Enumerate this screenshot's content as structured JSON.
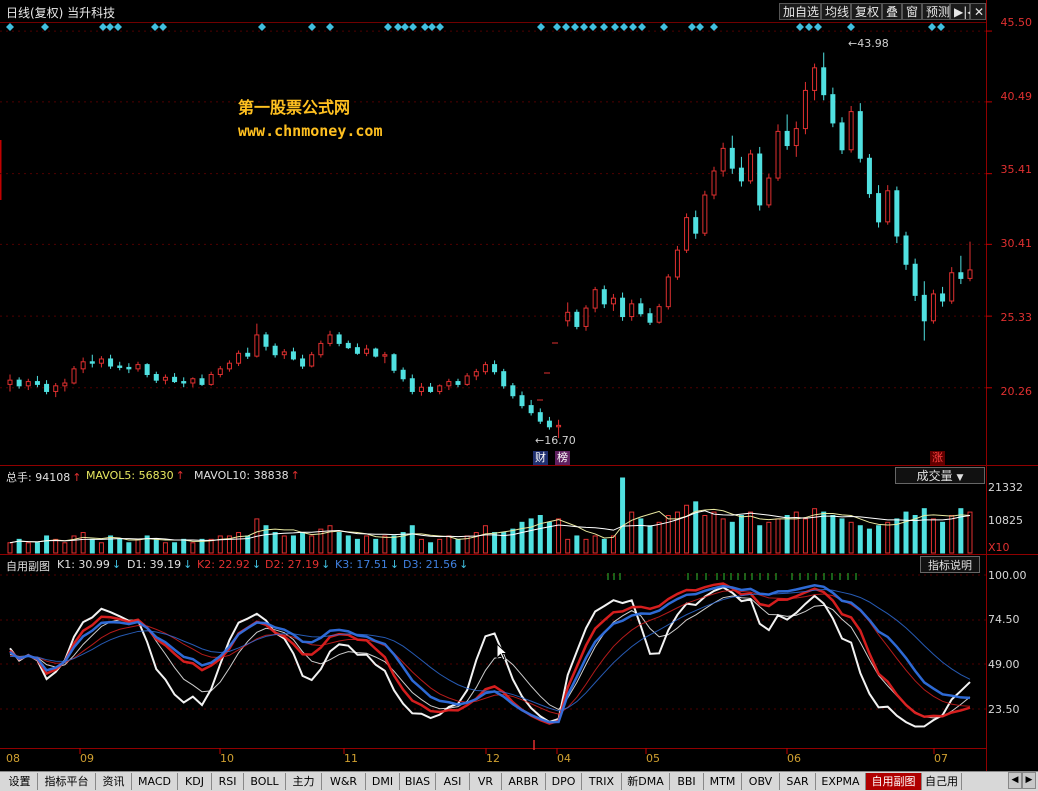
{
  "header": {
    "title": "日线(复权) 当升科技",
    "buttons": [
      "加自选",
      "均线",
      "复权",
      "叠",
      "窗",
      "预测",
      "▶|◀",
      "✕"
    ]
  },
  "watermark": {
    "line1": "第一股票公式网",
    "line2": "www.chnmoney.com"
  },
  "price_axis": {
    "labels": [
      "45.50",
      "40.49",
      "35.41",
      "30.41",
      "25.33",
      "20.26"
    ]
  },
  "price_markers": {
    "high": "43.98",
    "low": "16.70",
    "badges": [
      "财",
      "榜",
      "涨"
    ]
  },
  "volume_panel": {
    "legend": [
      {
        "text": "总手: 94108",
        "arrow": "↑",
        "color": "#e0e0e0"
      },
      {
        "text": "MAVOL5: 56830",
        "arrow": "↑",
        "color": "#e8e860"
      },
      {
        "text": "MAVOL10: 38838",
        "arrow": "↑",
        "color": "#e0e0e0"
      }
    ],
    "dropdown": "成交量",
    "axis": [
      "21332",
      "10825",
      "X10"
    ]
  },
  "indicator_panel": {
    "name": "自用副图",
    "legend": [
      {
        "text": "K1: 30.99",
        "arrow": "↓",
        "color": "#e0e0e0"
      },
      {
        "text": "D1: 39.19",
        "arrow": "↓",
        "color": "#e0e0e0"
      },
      {
        "text": "K2: 22.92",
        "arrow": "↓",
        "color": "#e03030"
      },
      {
        "text": "D2: 27.19",
        "arrow": "↓",
        "color": "#e03030"
      },
      {
        "text": "K3: 17.51",
        "arrow": "↓",
        "color": "#4080e0"
      },
      {
        "text": "D3: 21.56",
        "arrow": "↓",
        "color": "#4080e0"
      }
    ],
    "help": "指标说明",
    "axis": [
      "100.00",
      "74.50",
      "49.00",
      "23.50"
    ]
  },
  "months": [
    "08",
    "09",
    "10",
    "11",
    "12",
    "04",
    "05",
    "06",
    "07"
  ],
  "tabs": [
    "设置",
    "指标平台",
    "资讯",
    "MACD",
    "KDJ",
    "RSI",
    "BOLL",
    "主力",
    "W&R",
    "DMI",
    "BIAS",
    "ASI",
    "VR",
    "ARBR",
    "DPO",
    "TRIX",
    "新DMA",
    "BBI",
    "MTM",
    "OBV",
    "SAR",
    "EXPMA",
    "自用副图",
    "自己用"
  ],
  "active_tab": "自用副图",
  "colors": {
    "up": "#e03030",
    "down": "#50e0e0",
    "k_line": "#ffffff",
    "red_line": "#e02020",
    "blue_line": "#3070e0"
  },
  "chart_data": {
    "type": "candlestick",
    "price_axis_labels": [
      45.5,
      40.49,
      35.41,
      30.41,
      25.33,
      20.26
    ],
    "ylim": [
      16.0,
      46.0
    ],
    "high_marker": 43.98,
    "low_marker": 16.7,
    "ohlc": [
      [
        20.5,
        21.2,
        20.0,
        20.8
      ],
      [
        20.8,
        21.0,
        20.2,
        20.4
      ],
      [
        20.4,
        20.9,
        20.1,
        20.7
      ],
      [
        20.7,
        21.1,
        20.3,
        20.5
      ],
      [
        20.5,
        20.8,
        19.8,
        20.0
      ],
      [
        20.0,
        20.6,
        19.6,
        20.4
      ],
      [
        20.4,
        20.9,
        20.0,
        20.6
      ],
      [
        20.6,
        21.8,
        20.5,
        21.6
      ],
      [
        21.6,
        22.4,
        21.3,
        22.1
      ],
      [
        22.1,
        22.6,
        21.7,
        22.0
      ],
      [
        22.0,
        22.5,
        21.7,
        22.3
      ],
      [
        22.3,
        22.6,
        21.6,
        21.8
      ],
      [
        21.8,
        22.1,
        21.5,
        21.7
      ],
      [
        21.7,
        22.0,
        21.3,
        21.6
      ],
      [
        21.6,
        22.1,
        21.4,
        21.9
      ],
      [
        21.9,
        22.0,
        21.0,
        21.2
      ],
      [
        21.2,
        21.4,
        20.6,
        20.8
      ],
      [
        20.8,
        21.2,
        20.5,
        21.0
      ],
      [
        21.0,
        21.3,
        20.6,
        20.7
      ],
      [
        20.7,
        21.0,
        20.3,
        20.6
      ],
      [
        20.6,
        21.0,
        20.3,
        20.9
      ],
      [
        20.9,
        21.2,
        20.4,
        20.5
      ],
      [
        20.5,
        21.4,
        20.4,
        21.2
      ],
      [
        21.2,
        21.8,
        21.0,
        21.6
      ],
      [
        21.6,
        22.2,
        21.4,
        22.0
      ],
      [
        22.0,
        22.9,
        21.8,
        22.7
      ],
      [
        22.7,
        23.1,
        22.3,
        22.5
      ],
      [
        22.5,
        24.8,
        22.4,
        24.0
      ],
      [
        24.0,
        24.2,
        22.9,
        23.2
      ],
      [
        23.2,
        23.4,
        22.4,
        22.6
      ],
      [
        22.6,
        23.0,
        22.3,
        22.8
      ],
      [
        22.8,
        23.1,
        22.2,
        22.3
      ],
      [
        22.3,
        22.6,
        21.6,
        21.8
      ],
      [
        21.8,
        22.8,
        21.7,
        22.6
      ],
      [
        22.6,
        23.6,
        22.4,
        23.4
      ],
      [
        23.4,
        24.3,
        23.2,
        24.0
      ],
      [
        24.0,
        24.2,
        23.2,
        23.4
      ],
      [
        23.4,
        23.6,
        23.0,
        23.1
      ],
      [
        23.1,
        23.4,
        22.6,
        22.7
      ],
      [
        22.7,
        23.3,
        22.5,
        23.0
      ],
      [
        23.0,
        23.1,
        22.4,
        22.5
      ],
      [
        22.5,
        22.8,
        22.0,
        22.6
      ],
      [
        22.6,
        22.7,
        21.3,
        21.5
      ],
      [
        21.5,
        21.7,
        20.7,
        20.9
      ],
      [
        20.9,
        21.2,
        19.8,
        20.0
      ],
      [
        20.0,
        20.6,
        19.7,
        20.3
      ],
      [
        20.3,
        20.6,
        19.9,
        20.0
      ],
      [
        20.0,
        20.5,
        19.8,
        20.4
      ],
      [
        20.4,
        20.9,
        20.1,
        20.7
      ],
      [
        20.7,
        20.9,
        20.3,
        20.5
      ],
      [
        20.5,
        21.3,
        20.4,
        21.1
      ],
      [
        21.1,
        21.6,
        20.8,
        21.4
      ],
      [
        21.4,
        22.1,
        21.2,
        21.9
      ],
      [
        21.9,
        22.2,
        21.2,
        21.4
      ],
      [
        21.4,
        21.6,
        20.2,
        20.4
      ],
      [
        20.4,
        20.6,
        19.5,
        19.7
      ],
      [
        19.7,
        20.0,
        18.8,
        19.0
      ],
      [
        19.0,
        19.4,
        18.3,
        18.5
      ],
      [
        18.5,
        18.8,
        17.7,
        17.9
      ],
      [
        17.9,
        18.2,
        17.3,
        17.5
      ],
      [
        17.5,
        18.0,
        16.7,
        17.6
      ],
      [
        25.0,
        26.3,
        24.6,
        25.6
      ],
      [
        25.6,
        25.8,
        24.4,
        24.6
      ],
      [
        24.6,
        26.1,
        24.3,
        25.9
      ],
      [
        25.9,
        27.4,
        25.6,
        27.2
      ],
      [
        27.2,
        27.5,
        25.9,
        26.2
      ],
      [
        26.2,
        26.9,
        25.7,
        26.6
      ],
      [
        26.6,
        27.0,
        25.0,
        25.3
      ],
      [
        25.3,
        26.5,
        25.0,
        26.2
      ],
      [
        26.2,
        26.6,
        25.3,
        25.5
      ],
      [
        25.5,
        25.9,
        24.7,
        24.9
      ],
      [
        24.9,
        26.2,
        24.8,
        26.0
      ],
      [
        26.0,
        28.3,
        25.8,
        28.1
      ],
      [
        28.1,
        30.3,
        27.9,
        30.0
      ],
      [
        30.0,
        32.6,
        29.8,
        32.3
      ],
      [
        32.3,
        32.8,
        30.8,
        31.2
      ],
      [
        31.2,
        34.2,
        31.0,
        33.9
      ],
      [
        33.9,
        35.9,
        33.6,
        35.6
      ],
      [
        35.6,
        37.6,
        35.2,
        37.2
      ],
      [
        37.2,
        38.1,
        35.4,
        35.8
      ],
      [
        35.8,
        36.6,
        34.5,
        34.9
      ],
      [
        34.9,
        37.1,
        34.7,
        36.8
      ],
      [
        36.8,
        37.3,
        32.8,
        33.2
      ],
      [
        33.2,
        35.4,
        33.0,
        35.1
      ],
      [
        35.1,
        38.9,
        34.9,
        38.4
      ],
      [
        38.4,
        39.6,
        37.1,
        37.4
      ],
      [
        37.4,
        39.1,
        36.6,
        38.6
      ],
      [
        38.6,
        41.9,
        38.2,
        41.3
      ],
      [
        41.3,
        43.2,
        40.6,
        42.9
      ],
      [
        42.9,
        43.98,
        40.6,
        41.0
      ],
      [
        41.0,
        41.5,
        38.7,
        39.0
      ],
      [
        39.0,
        39.4,
        36.8,
        37.1
      ],
      [
        37.1,
        40.2,
        36.9,
        39.8
      ],
      [
        39.8,
        40.4,
        36.2,
        36.5
      ],
      [
        36.5,
        36.8,
        33.7,
        34.0
      ],
      [
        34.0,
        34.6,
        31.6,
        32.0
      ],
      [
        32.0,
        34.6,
        31.8,
        34.2
      ],
      [
        34.2,
        34.5,
        30.5,
        31.0
      ],
      [
        31.0,
        31.3,
        28.6,
        29.0
      ],
      [
        29.0,
        29.4,
        26.4,
        26.8
      ],
      [
        26.8,
        27.8,
        23.6,
        25.0
      ],
      [
        25.0,
        27.2,
        24.8,
        26.9
      ],
      [
        26.9,
        27.4,
        26.0,
        26.4
      ],
      [
        26.4,
        28.8,
        26.2,
        28.4
      ],
      [
        28.4,
        29.6,
        27.6,
        28.0
      ],
      [
        28.0,
        30.6,
        27.8,
        28.6
      ]
    ],
    "volume": [
      3,
      4,
      3,
      3,
      5,
      4,
      3,
      5,
      6,
      4,
      3,
      5,
      4,
      3,
      4,
      5,
      4,
      3,
      3,
      4,
      3,
      4,
      4,
      5,
      5,
      6,
      5,
      10,
      8,
      6,
      5,
      5,
      6,
      5,
      7,
      8,
      6,
      5,
      4,
      5,
      4,
      5,
      5,
      6,
      8,
      4,
      3,
      4,
      5,
      4,
      5,
      6,
      8,
      6,
      6,
      7,
      9,
      10,
      11,
      9,
      10,
      4,
      5,
      4,
      5,
      4,
      5,
      22,
      12,
      10,
      8,
      9,
      11,
      12,
      14,
      15,
      11,
      12,
      10,
      9,
      11,
      12,
      8,
      9,
      10,
      11,
      12,
      10,
      13,
      12,
      11,
      10,
      9,
      8,
      7,
      8,
      9,
      10,
      12,
      11,
      13,
      10,
      9,
      11,
      13,
      12
    ]
  }
}
